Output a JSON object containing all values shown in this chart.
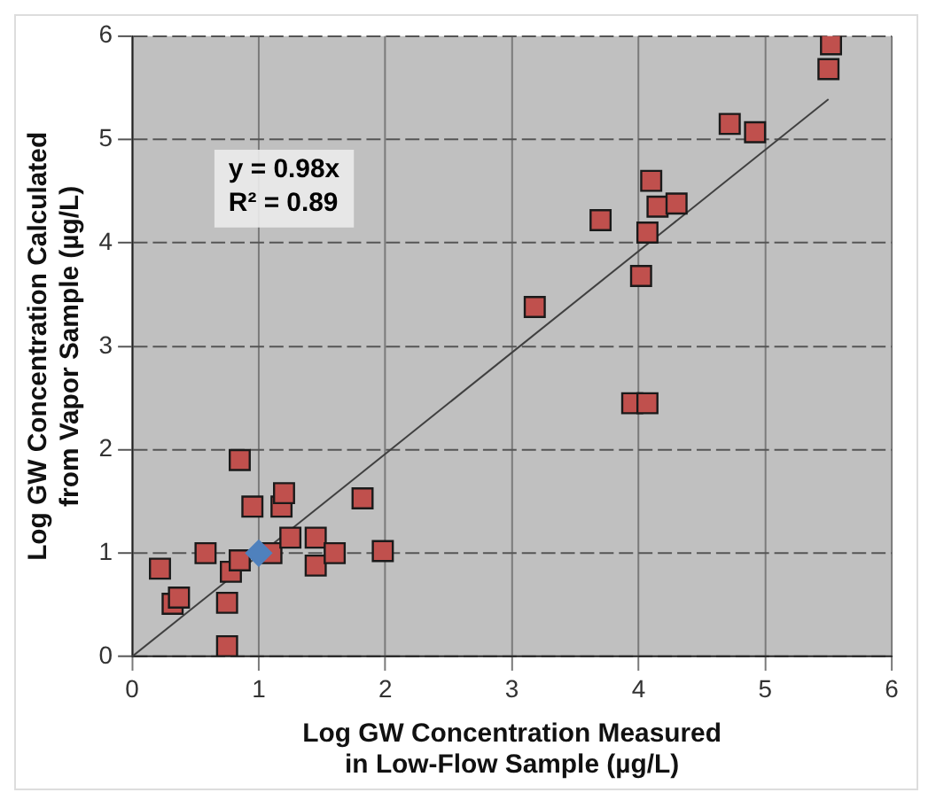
{
  "chart_data": {
    "type": "scatter",
    "xlabel": "Log GW Concentration Measured in Low-Flow Sample (µg/L)",
    "ylabel": "Log GW Concentration Calculated from Vapor Sample (µg/L)",
    "xlim": [
      0,
      6
    ],
    "ylim": [
      0,
      6
    ],
    "xticks": [
      0,
      1,
      2,
      3,
      4,
      5,
      6
    ],
    "yticks": [
      0,
      1,
      2,
      3,
      4,
      5,
      6
    ],
    "grid": true,
    "marker": "square",
    "series": [
      {
        "color": "#c0504d",
        "x": [
          0.22,
          0.32,
          0.37,
          0.58,
          0.75,
          0.75,
          0.78,
          0.85,
          0.85,
          0.95,
          1.1,
          1.18,
          1.2,
          1.25,
          1.45,
          1.45,
          1.6,
          1.82,
          1.98,
          3.18,
          3.7,
          3.95,
          4.07,
          4.02,
          4.07,
          4.1,
          4.15,
          4.3,
          4.72,
          4.92,
          5.5,
          5.52
        ],
        "values": [
          0.85,
          0.51,
          0.57,
          1.0,
          0.1,
          0.52,
          0.82,
          0.93,
          1.9,
          1.45,
          1.0,
          1.45,
          1.58,
          1.15,
          1.15,
          0.88,
          1.0,
          1.53,
          1.02,
          3.38,
          4.22,
          2.45,
          2.45,
          3.68,
          4.1,
          4.6,
          4.35,
          4.38,
          5.15,
          5.07,
          5.68,
          5.92
        ]
      },
      {
        "color": "#4f81bd",
        "marker": "diamond",
        "x": [
          1.0
        ],
        "values": [
          1.0
        ]
      },
      {
        "type": "line",
        "marker": "none",
        "color": "#404040",
        "x": [
          0,
          5.5
        ],
        "values": [
          0,
          5.39
        ]
      }
    ],
    "annotations": [
      "y = 0.98x",
      "R² = 0.89"
    ]
  }
}
